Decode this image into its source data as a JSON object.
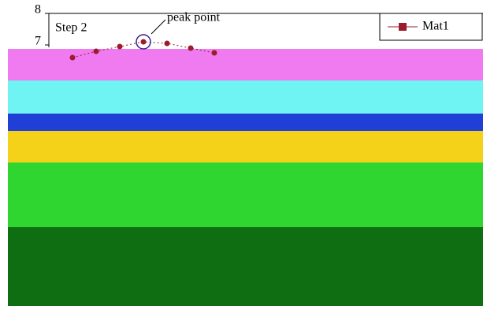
{
  "chart_data": {
    "type": "line",
    "annotations": [
      "Step 2",
      "peak point"
    ],
    "x": [
      1,
      2,
      3,
      4,
      5,
      6,
      7
    ],
    "series": [
      {
        "name": "Mat1",
        "color": "#9b1c2c",
        "values": [
          6.6,
          6.8,
          6.95,
          7.1,
          7.05,
          6.9,
          6.75
        ]
      }
    ],
    "xlim": [
      0,
      14
    ],
    "ylim": [
      0,
      8
    ],
    "yticks": [
      7,
      8
    ]
  }
}
